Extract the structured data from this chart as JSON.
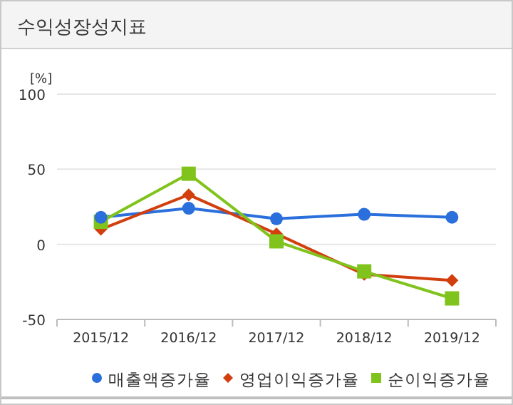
{
  "chart_data": {
    "type": "line",
    "title": "수익성장성지표",
    "ylabel": "[%]",
    "categories": [
      "2015/12",
      "2016/12",
      "2017/12",
      "2018/12",
      "2019/12"
    ],
    "series": [
      {
        "name": "매출액증가율",
        "color": "#2a6fdb",
        "marker": "circle",
        "values": [
          18,
          24,
          17,
          20,
          18
        ]
      },
      {
        "name": "영업이익증가율",
        "color": "#d23f0f",
        "marker": "diamond",
        "values": [
          10,
          33,
          7,
          -20,
          -24
        ]
      },
      {
        "name": "순이익증가율",
        "color": "#80c31c",
        "marker": "square",
        "values": [
          15,
          47,
          2,
          -18,
          -36
        ]
      }
    ],
    "ylim": [
      -50,
      100
    ],
    "yticks": [
      -50,
      0,
      50,
      100
    ],
    "grid": "y",
    "legend": "bottom"
  }
}
